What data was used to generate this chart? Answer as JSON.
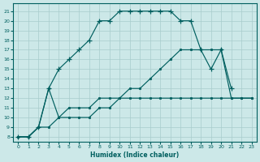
{
  "xlabel": "Humidex (Indice chaleur)",
  "background_color": "#cce8e8",
  "grid_color": "#a8cccc",
  "line_color": "#005f5f",
  "xlim": [
    -0.5,
    23.5
  ],
  "ylim": [
    7.5,
    21.8
  ],
  "xticks": [
    0,
    1,
    2,
    3,
    4,
    5,
    6,
    7,
    8,
    9,
    10,
    11,
    12,
    13,
    14,
    15,
    16,
    17,
    18,
    19,
    20,
    21,
    22,
    23
  ],
  "yticks": [
    8,
    9,
    10,
    11,
    12,
    13,
    14,
    15,
    16,
    17,
    18,
    19,
    20,
    21
  ],
  "series1_x": [
    0,
    1,
    2,
    3,
    4,
    5,
    6,
    7,
    8,
    9,
    10,
    11,
    12,
    13,
    14,
    15,
    16,
    17,
    18,
    19,
    20,
    21
  ],
  "series1_y": [
    8,
    8,
    9,
    13,
    15,
    16,
    17,
    18,
    20,
    20,
    21,
    21,
    21,
    21,
    21,
    21,
    20,
    20,
    17,
    15,
    17,
    13
  ],
  "series2_x": [
    0,
    1,
    2,
    3,
    4,
    5,
    6,
    7,
    8,
    9,
    10,
    11,
    12,
    13,
    14,
    15,
    16,
    17,
    18,
    19,
    20,
    21,
    22,
    23
  ],
  "series2_y": [
    8,
    8,
    9,
    9,
    10,
    11,
    11,
    11,
    12,
    12,
    12,
    13,
    13,
    14,
    15,
    16,
    17,
    17,
    17,
    17,
    17,
    12,
    12,
    12
  ],
  "series3_x": [
    0,
    1,
    2,
    3,
    4,
    5,
    6,
    7,
    8,
    9,
    10,
    11,
    12,
    13,
    14,
    15,
    16,
    17,
    18,
    19,
    20,
    21,
    22,
    23
  ],
  "series3_y": [
    8,
    8,
    9,
    13,
    10,
    10,
    10,
    10,
    11,
    11,
    12,
    12,
    12,
    12,
    12,
    12,
    12,
    12,
    12,
    12,
    12,
    12,
    12,
    12
  ]
}
